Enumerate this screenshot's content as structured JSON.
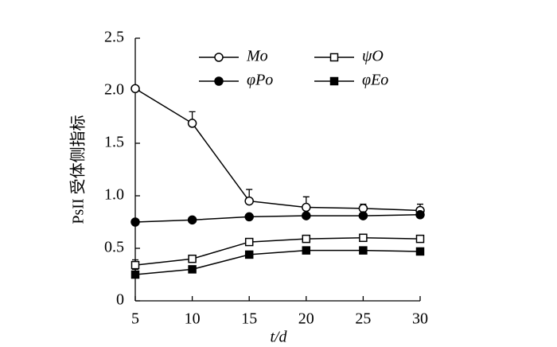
{
  "chart_data": {
    "type": "line",
    "x_label": "t/d",
    "y_label": "PsII 受体侧指标",
    "x": [
      5,
      10,
      15,
      20,
      25,
      30
    ],
    "xlim": [
      5,
      30
    ],
    "xticks": [
      5,
      10,
      15,
      20,
      25,
      30
    ],
    "ylim": [
      0,
      2.5
    ],
    "yticks": [
      0,
      0.5,
      {
        "value": 1,
        "label": "1.0"
      },
      1.5,
      {
        "value": 2,
        "label": "2.0"
      },
      2.5
    ],
    "series": [
      {
        "name": "Mo",
        "color": "#000000",
        "marker": "open-circle",
        "values": [
          2.02,
          1.69,
          0.95,
          0.89,
          0.88,
          0.86
        ],
        "errors": [
          0.0,
          0.11,
          0.11,
          0.1,
          0.04,
          0.06
        ]
      },
      {
        "name": "ψO",
        "color": "#000000",
        "marker": "open-square",
        "values": [
          0.34,
          0.4,
          0.56,
          0.59,
          0.6,
          0.59
        ],
        "errors": [
          0.05,
          0.02,
          0.02,
          0.02,
          0.02,
          0.02
        ]
      },
      {
        "name": "φPo",
        "color": "#000000",
        "marker": "filled-circle",
        "values": [
          0.75,
          0.77,
          0.8,
          0.81,
          0.81,
          0.82
        ],
        "errors": [
          0.01,
          0.01,
          0.01,
          0.01,
          0.01,
          0.01
        ]
      },
      {
        "name": "φEo",
        "color": "#000000",
        "marker": "filled-square",
        "values": [
          0.25,
          0.3,
          0.44,
          0.48,
          0.48,
          0.47
        ],
        "errors": [
          0.05,
          0.02,
          0.02,
          0.01,
          0.01,
          0.01
        ]
      }
    ]
  }
}
